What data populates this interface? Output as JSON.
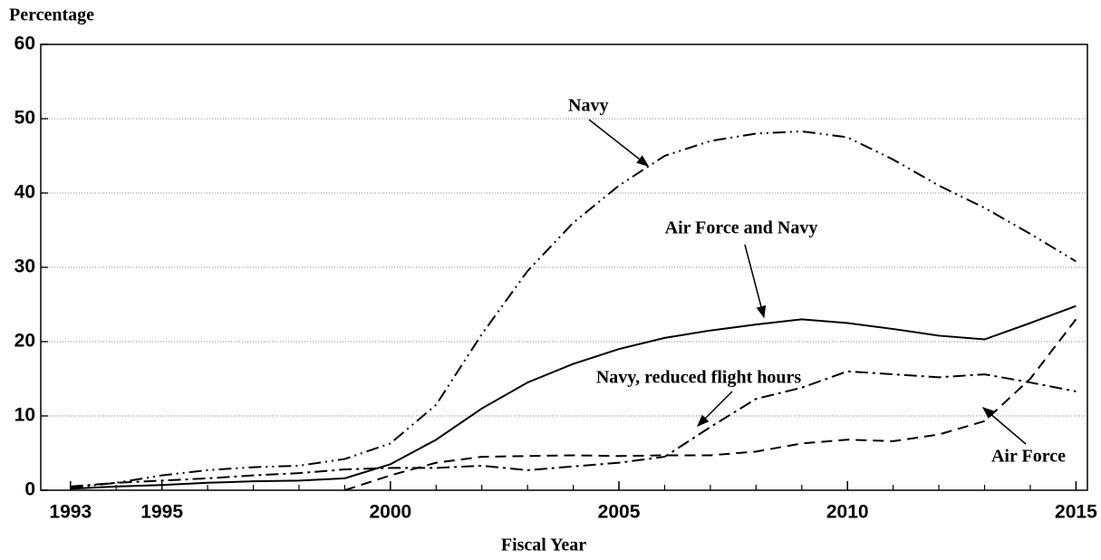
{
  "chart_data": {
    "type": "line",
    "y_label": "Percentage",
    "x_label": "Fiscal Year",
    "x": [
      1993,
      1994,
      1995,
      1996,
      1997,
      1998,
      1999,
      2000,
      2001,
      2002,
      2003,
      2004,
      2005,
      2006,
      2007,
      2008,
      2009,
      2010,
      2011,
      2012,
      2013,
      2014,
      2015
    ],
    "series": [
      {
        "name": "Navy",
        "color": "#000000",
        "values": [
          0.3,
          1,
          2,
          2.7,
          3.1,
          3.3,
          4.2,
          6.3,
          11.5,
          21,
          29.5,
          36,
          41,
          45,
          47,
          48,
          48.3,
          47.5,
          44.5,
          41,
          38,
          34.5,
          30.8
        ]
      },
      {
        "name": "Air Force and Navy",
        "color": "#000000",
        "values": [
          0.2,
          0.5,
          0.7,
          1,
          1.2,
          1.3,
          1.6,
          3.5,
          6.8,
          11,
          14.5,
          17,
          19,
          20.5,
          21.5,
          22.3,
          23,
          22.5,
          21.7,
          20.8,
          20.3,
          22.5,
          24.8
        ]
      },
      {
        "name": "Navy, reduced flight hours",
        "color": "#000000",
        "values": [
          0.5,
          1,
          1.3,
          1.6,
          2,
          2.3,
          2.8,
          3,
          3,
          3.3,
          2.7,
          3.2,
          3.7,
          4.5,
          8.5,
          12.3,
          13.8,
          16,
          15.6,
          15.2,
          15.6,
          14.5,
          13.3
        ]
      },
      {
        "name": "Air Force",
        "color": "#000000",
        "values": [
          null,
          null,
          null,
          null,
          null,
          null,
          0,
          2,
          3.7,
          4.5,
          4.6,
          4.7,
          4.6,
          4.7,
          4.7,
          5.2,
          6.3,
          6.8,
          6.6,
          7.5,
          9.3,
          15,
          23
        ]
      }
    ],
    "xlim": [
      1992.35,
      2015.25
    ],
    "xticks": [
      1993,
      1995,
      2000,
      2005,
      2010,
      2015
    ],
    "ylim": [
      0,
      60
    ],
    "yticks": [
      0,
      10,
      20,
      30,
      40,
      50,
      60
    ],
    "grid": true
  }
}
